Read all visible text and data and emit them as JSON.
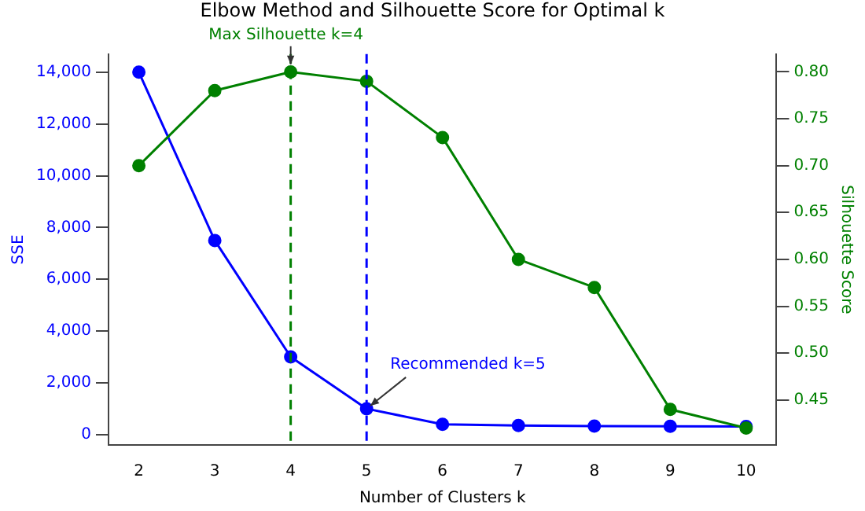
{
  "chart_data": {
    "type": "line",
    "title": "Elbow Method and Silhouette Score for Optimal k",
    "xlabel": "Number of Clusters k",
    "ylabel": "SSE",
    "y2label": "Silhouette Score",
    "x": [
      2,
      3,
      4,
      5,
      6,
      7,
      8,
      9,
      10
    ],
    "series": [
      {
        "color": "#0000ff",
        "values": [
          14000,
          7500,
          3000,
          1000,
          400,
          350,
          330,
          320,
          310
        ]
      },
      {
        "color": "#008000",
        "axis": "y2",
        "values": [
          0.7,
          0.78,
          0.8,
          0.79,
          0.73,
          0.6,
          0.57,
          0.44,
          0.42
        ]
      }
    ],
    "xlim": [
      1.6,
      10.4
    ],
    "xticks": [
      2,
      3,
      4,
      5,
      6,
      7,
      8,
      9,
      10
    ],
    "ylim": [
      -400,
      14700
    ],
    "yticks": [
      {
        "value": 0,
        "label": "0"
      },
      {
        "value": 2000,
        "label": "2,000"
      },
      {
        "value": 4000,
        "label": "4,000"
      },
      {
        "value": 6000,
        "label": "6,000"
      },
      {
        "value": 8000,
        "label": "8,000"
      },
      {
        "value": 10000,
        "label": "10,000"
      },
      {
        "value": 12000,
        "label": "12,000"
      },
      {
        "value": 14000,
        "label": "14,000"
      }
    ],
    "y2lim": [
      0.402,
      0.819
    ],
    "y2ticks": [
      {
        "value": 0.45,
        "label": "0.45"
      },
      {
        "value": 0.5,
        "label": "0.50"
      },
      {
        "value": 0.55,
        "label": "0.55"
      },
      {
        "value": 0.6,
        "label": "0.60"
      },
      {
        "value": 0.65,
        "label": "0.65"
      },
      {
        "value": 0.7,
        "label": "0.70"
      },
      {
        "value": 0.75,
        "label": "0.75"
      },
      {
        "value": 0.8,
        "label": "0.80"
      }
    ],
    "ref_lines": [
      {
        "axis": "x",
        "value": 4,
        "color": "#008000",
        "line_style": "dashed"
      },
      {
        "axis": "x",
        "value": 5,
        "color": "#0000ff",
        "line_style": "dashed"
      }
    ],
    "annotations": [
      {
        "text": "Max Silhouette k=4",
        "x": 4,
        "y": 14000
      },
      {
        "text": "Recommended k=5",
        "x": 5,
        "y": 1000
      }
    ],
    "marker": "circle",
    "line_style": "solid",
    "grid": false,
    "legend": false
  }
}
